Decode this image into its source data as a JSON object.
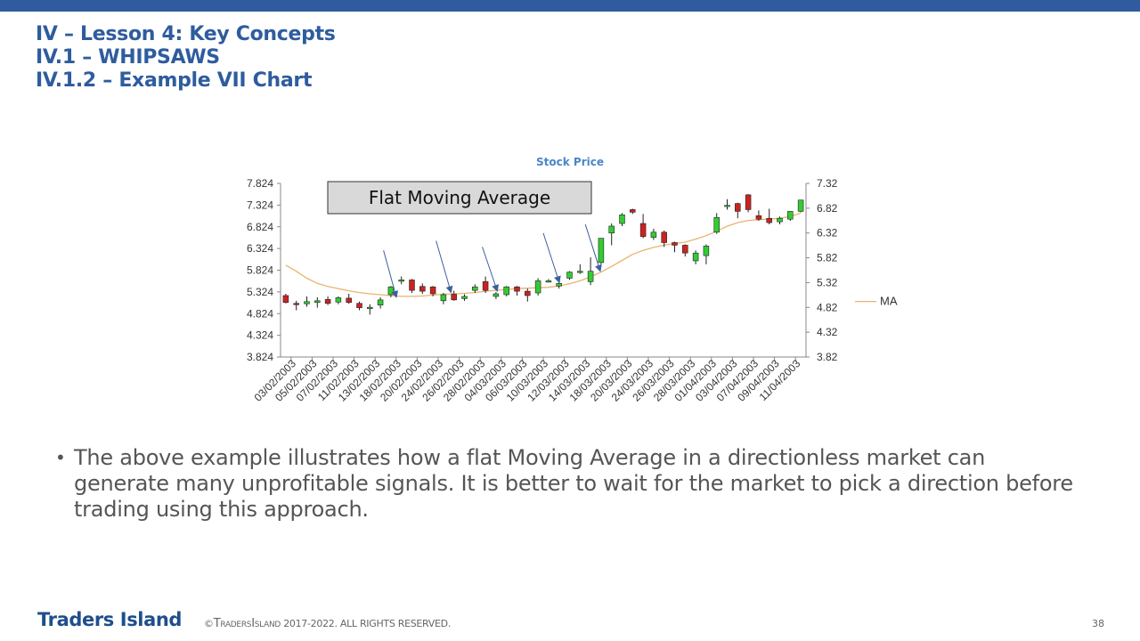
{
  "colors": {
    "top_bar": "#2E5C9E",
    "title": "#2E5C9E",
    "chart_title": "#4A86C8",
    "logo": "#1F4E8C",
    "up_candle": "#33CC33",
    "down_candle": "#CC2222",
    "ma_line": "#E8B46E",
    "annotation_arrow": "#3A5F9E",
    "annotation_box_fill": "#D9D9D9"
  },
  "header": {
    "line1": "IV – Lesson 4: Key Concepts",
    "line2": "IV.1 – WHIPSAWS",
    "line3": "IV.1.2 – Example VII Chart"
  },
  "annotation": {
    "label": "Flat Moving Average"
  },
  "body": {
    "bullet_marker": "•",
    "bullet_text": "The above example illustrates how a flat Moving Average in a directionless market can generate many unprofitable signals. It is better to wait for the market to pick a direction before trading using this approach."
  },
  "footer": {
    "logo": "Traders Island",
    "copyright_prefix": "©",
    "copyright_t": "T",
    "copyright_raders": "RADERS",
    "copyright_i": "I",
    "copyright_sland": "SLAND",
    "copyright_rest": " 2017-2022. ALL RIGHTS RESERVED.",
    "page_number": "38"
  },
  "chart_data": {
    "type": "candlestick",
    "title": "Stock Price",
    "legend": [
      "MA"
    ],
    "legend_position": "right",
    "y_left_ticks": [
      "7.824",
      "7.324",
      "6.824",
      "6.324",
      "5.824",
      "5.324",
      "4.824",
      "4.324",
      "3.824"
    ],
    "y_left_range": [
      3.824,
      7.824
    ],
    "y_right_ticks": [
      "7.32",
      "6.82",
      "6.32",
      "5.82",
      "5.32",
      "4.82",
      "4.32",
      "3.82"
    ],
    "y_right_range": [
      3.82,
      7.32
    ],
    "x_tick_labels": [
      "03/02/2003",
      "05/02/2003",
      "07/02/2003",
      "11/02/2003",
      "13/02/2003",
      "18/02/2003",
      "20/02/2003",
      "24/02/2003",
      "26/02/2003",
      "28/02/2003",
      "04/03/2003",
      "06/03/2003",
      "10/03/2003",
      "12/03/2003",
      "14/03/2003",
      "18/03/2003",
      "20/03/2003",
      "24/03/2003",
      "26/03/2003",
      "28/03/2003",
      "01/04/2003",
      "03/04/2003",
      "07/04/2003",
      "09/04/2003",
      "11/04/2003"
    ],
    "candles": [
      {
        "o": 5.24,
        "h": 5.28,
        "l": 5.06,
        "c": 5.08
      },
      {
        "o": 5.06,
        "h": 5.12,
        "l": 4.9,
        "c": 5.04
      },
      {
        "o": 5.05,
        "h": 5.22,
        "l": 4.98,
        "c": 5.1
      },
      {
        "o": 5.08,
        "h": 5.2,
        "l": 4.96,
        "c": 5.12
      },
      {
        "o": 5.15,
        "h": 5.22,
        "l": 5.02,
        "c": 5.06
      },
      {
        "o": 5.09,
        "h": 5.22,
        "l": 5.04,
        "c": 5.19
      },
      {
        "o": 5.18,
        "h": 5.28,
        "l": 5.05,
        "c": 5.08
      },
      {
        "o": 5.06,
        "h": 5.1,
        "l": 4.9,
        "c": 4.96
      },
      {
        "o": 4.96,
        "h": 5.04,
        "l": 4.8,
        "c": 4.97
      },
      {
        "o": 5.02,
        "h": 5.2,
        "l": 4.94,
        "c": 5.14
      },
      {
        "o": 5.26,
        "h": 5.46,
        "l": 5.2,
        "c": 5.44
      },
      {
        "o": 5.6,
        "h": 5.68,
        "l": 5.5,
        "c": 5.6
      },
      {
        "o": 5.6,
        "h": 5.62,
        "l": 5.3,
        "c": 5.36
      },
      {
        "o": 5.45,
        "h": 5.52,
        "l": 5.28,
        "c": 5.34
      },
      {
        "o": 5.44,
        "h": 5.46,
        "l": 5.22,
        "c": 5.28
      },
      {
        "o": 5.12,
        "h": 5.3,
        "l": 5.04,
        "c": 5.26
      },
      {
        "o": 5.27,
        "h": 5.35,
        "l": 5.12,
        "c": 5.14
      },
      {
        "o": 5.17,
        "h": 5.27,
        "l": 5.12,
        "c": 5.22
      },
      {
        "o": 5.36,
        "h": 5.5,
        "l": 5.3,
        "c": 5.44
      },
      {
        "o": 5.56,
        "h": 5.68,
        "l": 5.3,
        "c": 5.36
      },
      {
        "o": 5.22,
        "h": 5.32,
        "l": 5.16,
        "c": 5.28
      },
      {
        "o": 5.26,
        "h": 5.46,
        "l": 5.22,
        "c": 5.44
      },
      {
        "o": 5.44,
        "h": 5.46,
        "l": 5.24,
        "c": 5.34
      },
      {
        "o": 5.34,
        "h": 5.4,
        "l": 5.1,
        "c": 5.24
      },
      {
        "o": 5.3,
        "h": 5.64,
        "l": 5.24,
        "c": 5.58
      },
      {
        "o": 5.58,
        "h": 5.62,
        "l": 5.54,
        "c": 5.58
      },
      {
        "o": 5.46,
        "h": 5.56,
        "l": 5.4,
        "c": 5.52
      },
      {
        "o": 5.64,
        "h": 5.8,
        "l": 5.6,
        "c": 5.78
      },
      {
        "o": 5.8,
        "h": 5.96,
        "l": 5.74,
        "c": 5.8
      },
      {
        "o": 5.56,
        "h": 6.12,
        "l": 5.48,
        "c": 5.8
      },
      {
        "o": 6.0,
        "h": 6.56,
        "l": 5.96,
        "c": 6.56
      },
      {
        "o": 6.68,
        "h": 6.9,
        "l": 6.4,
        "c": 6.84
      },
      {
        "o": 6.9,
        "h": 7.14,
        "l": 6.84,
        "c": 7.1
      },
      {
        "o": 7.22,
        "h": 7.24,
        "l": 7.12,
        "c": 7.16
      },
      {
        "o": 6.9,
        "h": 7.12,
        "l": 6.56,
        "c": 6.6
      },
      {
        "o": 6.58,
        "h": 6.78,
        "l": 6.52,
        "c": 6.7
      },
      {
        "o": 6.7,
        "h": 6.74,
        "l": 6.36,
        "c": 6.46
      },
      {
        "o": 6.46,
        "h": 6.48,
        "l": 6.24,
        "c": 6.4
      },
      {
        "o": 6.4,
        "h": 6.42,
        "l": 6.14,
        "c": 6.22
      },
      {
        "o": 6.04,
        "h": 6.28,
        "l": 5.96,
        "c": 6.22
      },
      {
        "o": 6.16,
        "h": 6.42,
        "l": 5.96,
        "c": 6.38
      },
      {
        "o": 6.7,
        "h": 7.14,
        "l": 6.66,
        "c": 7.04
      },
      {
        "o": 7.32,
        "h": 7.46,
        "l": 7.22,
        "c": 7.32
      },
      {
        "o": 7.36,
        "h": 7.38,
        "l": 7.02,
        "c": 7.18
      },
      {
        "o": 7.56,
        "h": 7.58,
        "l": 7.16,
        "c": 7.22
      },
      {
        "o": 7.08,
        "h": 7.2,
        "l": 6.96,
        "c": 7.0
      },
      {
        "o": 7.02,
        "h": 7.24,
        "l": 6.88,
        "c": 6.92
      },
      {
        "o": 6.94,
        "h": 7.06,
        "l": 6.88,
        "c": 7.02
      },
      {
        "o": 7.0,
        "h": 7.18,
        "l": 6.96,
        "c": 7.18
      },
      {
        "o": 7.18,
        "h": 7.44,
        "l": 7.16,
        "c": 7.44
      }
    ],
    "ma": [
      5.94,
      5.8,
      5.64,
      5.52,
      5.45,
      5.4,
      5.35,
      5.31,
      5.28,
      5.26,
      5.24,
      5.22,
      5.22,
      5.23,
      5.25,
      5.27,
      5.28,
      5.29,
      5.31,
      5.34,
      5.36,
      5.38,
      5.4,
      5.41,
      5.42,
      5.43,
      5.46,
      5.51,
      5.58,
      5.67,
      5.78,
      5.91,
      6.05,
      6.19,
      6.28,
      6.35,
      6.4,
      6.44,
      6.47,
      6.54,
      6.62,
      6.72,
      6.84,
      6.92,
      6.97,
      6.99,
      7.0,
      7.02,
      7.06,
      7.14
    ],
    "arrows": [
      {
        "from_x": 9.8,
        "from_y": 6.28,
        "to_x": 11.0,
        "to_y": 5.22
      },
      {
        "from_x": 14.8,
        "from_y": 6.5,
        "to_x": 16.2,
        "to_y": 5.33
      },
      {
        "from_x": 19.2,
        "from_y": 6.36,
        "to_x": 20.6,
        "to_y": 5.36
      },
      {
        "from_x": 25.0,
        "from_y": 6.68,
        "to_x": 26.5,
        "to_y": 5.56
      },
      {
        "from_x": 29.0,
        "from_y": 6.88,
        "to_x": 30.4,
        "to_y": 5.82
      }
    ]
  }
}
